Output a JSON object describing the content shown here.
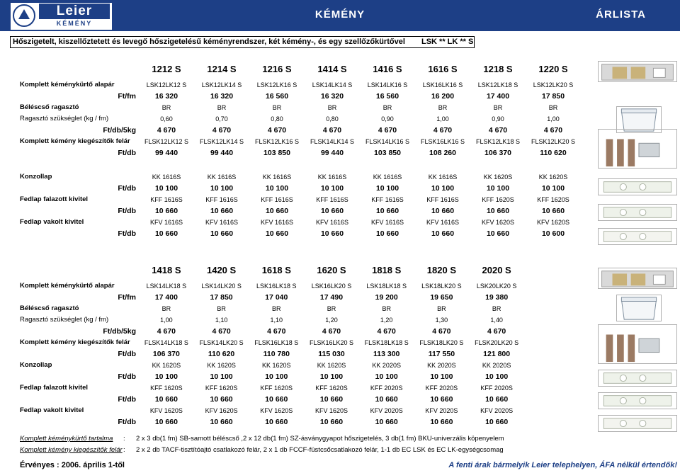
{
  "header": {
    "logo_name": "Leier",
    "logo_sub": "KÉMÉNY",
    "title": "KÉMÉNY",
    "right": "ÁRLISTA"
  },
  "subtitle": {
    "text": "Hőszigetelt, kiszellőztetett és levegő hőszigetelésű kéményrendszer, két kémény-, és egy szellőzőkürtővel",
    "code": "LSK ** LK ** S"
  },
  "table1": {
    "headers": [
      "1212 S",
      "1214 S",
      "1216 S",
      "1414 S",
      "1416 S",
      "1616 S",
      "1218 S",
      "1220 S"
    ],
    "rows": [
      {
        "label": "Komplett kéménykürtő alapár",
        "unit": "",
        "values": [
          "LSK12LK12 S",
          "LSK12LK14 S",
          "LSK12LK16 S",
          "LSK14LK14 S",
          "LSK14LK16 S",
          "LSK16LK16 S",
          "LSK12LK18 S",
          "LSK12LK20 S"
        ]
      },
      {
        "label": "",
        "unit": "Ft/fm",
        "price": true,
        "values": [
          "16 320",
          "16 320",
          "16 560",
          "16 320",
          "16 560",
          "16 200",
          "17 400",
          "17 850"
        ]
      },
      {
        "label": "Béléscső ragasztó",
        "unit": "",
        "values": [
          "BR",
          "BR",
          "BR",
          "BR",
          "BR",
          "BR",
          "BR",
          "BR"
        ]
      },
      {
        "label": "Ragasztó szükséglet (kg / fm)",
        "unit": "",
        "plain": true,
        "values": [
          "0,60",
          "0,70",
          "0,80",
          "0,80",
          "0,90",
          "1,00",
          "0,90",
          "1,00"
        ]
      },
      {
        "label": "",
        "unit": "Ft/db/5kg",
        "price": true,
        "values": [
          "4 670",
          "4 670",
          "4 670",
          "4 670",
          "4 670",
          "4 670",
          "4 670",
          "4 670"
        ]
      },
      {
        "label": "Komplett kémény kiegészítők felár",
        "unit": "",
        "values": [
          "FLSK12LK12 S",
          "FLSK12LK14 S",
          "FLSK12LK16 S",
          "FLSK14LK14 S",
          "FLSK14LK16 S",
          "FLSK16LK16 S",
          "FLSK12LK18 S",
          "FLSK12LK20 S"
        ]
      },
      {
        "label": "",
        "unit": "Ft/db",
        "price": true,
        "values": [
          "99 440",
          "99 440",
          "103 850",
          "99 440",
          "103 850",
          "108 260",
          "106 370",
          "110 620"
        ]
      }
    ]
  },
  "table2": {
    "rows": [
      {
        "label": "Konzollap",
        "unit": "",
        "values": [
          "KK 1616S",
          "KK 1616S",
          "KK 1616S",
          "KK 1616S",
          "KK 1616S",
          "KK 1616S",
          "KK 1620S",
          "KK 1620S"
        ]
      },
      {
        "label": "",
        "unit": "Ft/db",
        "price": true,
        "values": [
          "10 100",
          "10 100",
          "10 100",
          "10 100",
          "10 100",
          "10 100",
          "10 100",
          "10 100"
        ]
      },
      {
        "label": "Fedlap falazott kivitel",
        "unit": "",
        "values": [
          "KFF 1616S",
          "KFF 1616S",
          "KFF 1616S",
          "KFF 1616S",
          "KFF 1616S",
          "KFF 1616S",
          "KFF 1620S",
          "KFF 1620S"
        ]
      },
      {
        "label": "",
        "unit": "Ft/db",
        "price": true,
        "values": [
          "10 660",
          "10 660",
          "10 660",
          "10 660",
          "10 660",
          "10 660",
          "10 660",
          "10 660"
        ]
      },
      {
        "label": "Fedlap vakolt kivitel",
        "unit": "",
        "values": [
          "KFV 1616S",
          "KFV 1616S",
          "KFV 1616S",
          "KFV 1616S",
          "KFV 1616S",
          "KFV 1616S",
          "KFV 1620S",
          "KFV 1620S"
        ]
      },
      {
        "label": "",
        "unit": "Ft/db",
        "price": true,
        "values": [
          "10 660",
          "10 660",
          "10 660",
          "10 660",
          "10 660",
          "10 660",
          "10 660",
          "10 600"
        ]
      }
    ]
  },
  "table3": {
    "headers": [
      "1418 S",
      "1420 S",
      "1618 S",
      "1620 S",
      "1818 S",
      "1820 S",
      "2020 S"
    ],
    "rows": [
      {
        "label": "Komplett kéménykürtő alapár",
        "unit": "",
        "values": [
          "LSK14LK18 S",
          "LSK14LK20 S",
          "LSK16LK18 S",
          "LSK16LK20 S",
          "LSK18LK18 S",
          "LSK18LK20 S",
          "LSK20LK20 S"
        ]
      },
      {
        "label": "",
        "unit": "Ft/fm",
        "price": true,
        "values": [
          "17 400",
          "17 850",
          "17 040",
          "17 490",
          "19 200",
          "19 650",
          "19 380"
        ]
      },
      {
        "label": "Béléscső ragasztó",
        "unit": "",
        "values": [
          "BR",
          "BR",
          "BR",
          "BR",
          "BR",
          "BR",
          "BR"
        ]
      },
      {
        "label": "Ragasztó szükséglet (kg / fm)",
        "unit": "",
        "plain": true,
        "values": [
          "1,00",
          "1,10",
          "1,10",
          "1,20",
          "1,20",
          "1,30",
          "1,40"
        ]
      },
      {
        "label": "",
        "unit": "Ft/db/5kg",
        "price": true,
        "values": [
          "4 670",
          "4 670",
          "4 670",
          "4 670",
          "4 670",
          "4 670",
          "4 670"
        ]
      },
      {
        "label": "Komplett kémény kiegészítők felár",
        "unit": "",
        "values": [
          "FLSK14LK18 S",
          "FLSK14LK20 S",
          "FLSK16LK18 S",
          "FLSK16LK20 S",
          "FLSK18LK18 S",
          "FLSK18LK20 S",
          "FLSK20LK20 S"
        ]
      },
      {
        "label": "",
        "unit": "Ft/db",
        "price": true,
        "values": [
          "106 370",
          "110 620",
          "110 780",
          "115 030",
          "113 300",
          "117 550",
          "121 800"
        ]
      },
      {
        "label": "Konzollap",
        "unit": "",
        "values": [
          "KK 1620S",
          "KK 1620S",
          "KK 1620S",
          "KK 1620S",
          "KK 2020S",
          "KK 2020S",
          "KK 2020S"
        ]
      },
      {
        "label": "",
        "unit": "Ft/db",
        "price": true,
        "values": [
          "10 100",
          "10 100",
          "10 100",
          "10 100",
          "10 100",
          "10 100",
          "10 100"
        ]
      },
      {
        "label": "Fedlap falazott kivitel",
        "unit": "",
        "values": [
          "KFF 1620S",
          "KFF 1620S",
          "KFF 1620S",
          "KFF 1620S",
          "KFF 2020S",
          "KFF 2020S",
          "KFF 2020S"
        ]
      },
      {
        "label": "",
        "unit": "Ft/db",
        "price": true,
        "values": [
          "10 660",
          "10 660",
          "10 660",
          "10 660",
          "10 660",
          "10 660",
          "10 660"
        ]
      },
      {
        "label": "Fedlap vakolt kivitel",
        "unit": "",
        "values": [
          "KFV 1620S",
          "KFV 1620S",
          "KFV 1620S",
          "KFV 1620S",
          "KFV 2020S",
          "KFV 2020S",
          "KFV 2020S"
        ]
      },
      {
        "label": "",
        "unit": "Ft/db",
        "price": true,
        "values": [
          "10 660",
          "10 660",
          "10 660",
          "10 660",
          "10 660",
          "10 660",
          "10 660"
        ]
      }
    ]
  },
  "footnotes": [
    {
      "key": "Komplett kéménykürtő tartalma",
      "colon": ":",
      "value": "2 x 3 db(1 fm) SB-samott béléscső ,2 x 12 db(1 fm) SZ-ásványgyapot hőszigetelés, 3 db(1 fm) BKU-univerzális köpenyelem"
    },
    {
      "key": "Komplett kémény kiegészítők felár",
      "colon": ":",
      "value": "2 x 2 db TACF-tisztítóajtó csatlakozó felár, 2 x 1 db FCCF-füstcsőcsatlakozó felár, 1-1 db EC LSK és EC LK-egységcsomag"
    }
  ],
  "validity": "Érvényes : 2006. április 1-től",
  "note": "A fenti árak bármelyik Leier telephelyen, ÁFA nélkül értendők!"
}
